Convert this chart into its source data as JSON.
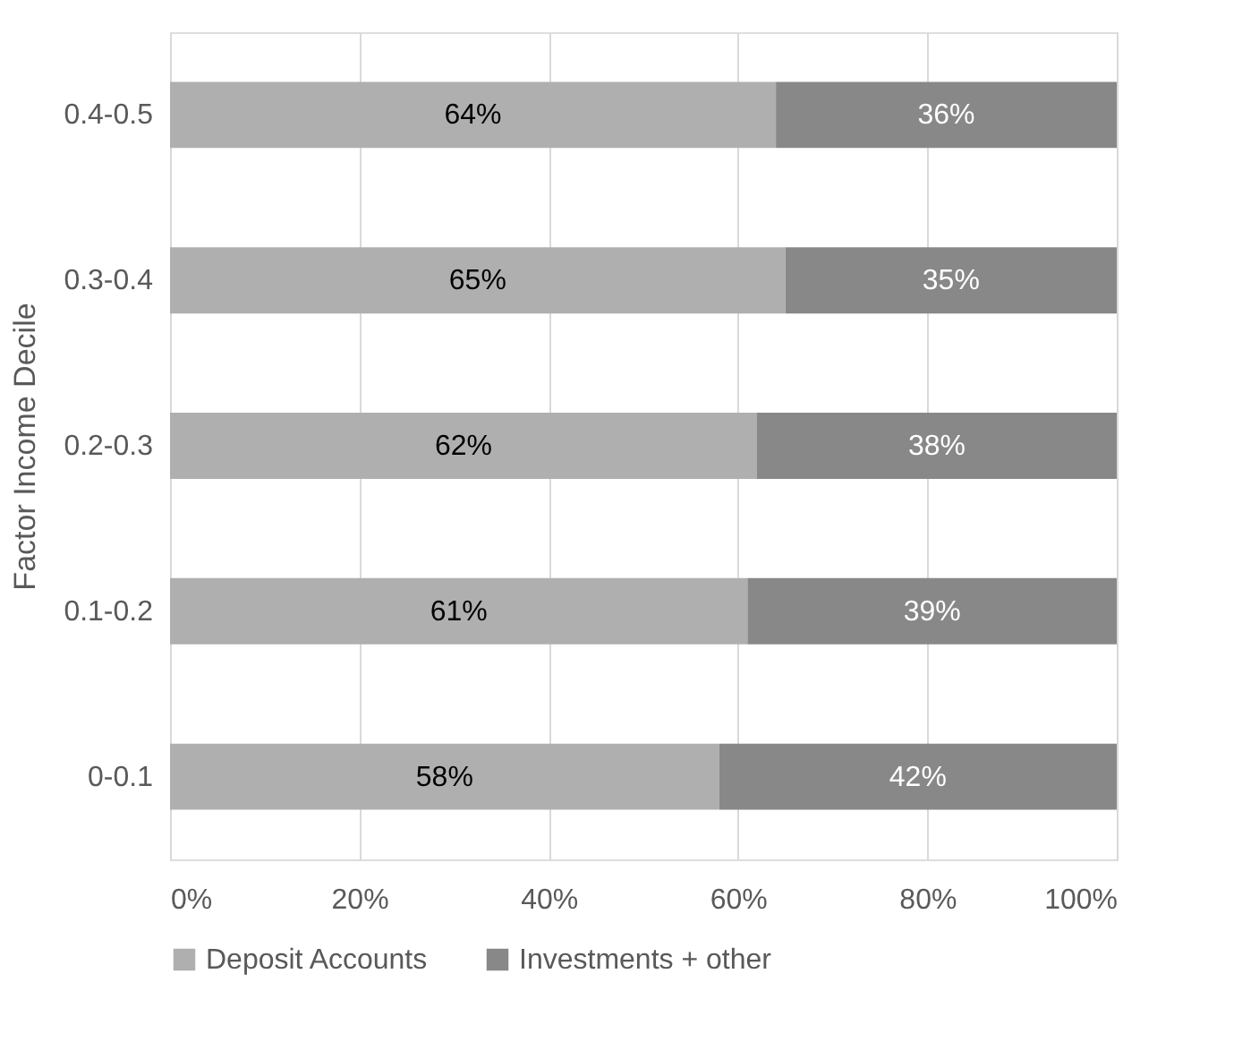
{
  "chart_data": {
    "type": "bar",
    "orientation": "horizontal",
    "stacked": true,
    "ylabel": "Factor Income Decile",
    "categories": [
      "0.4-0.5",
      "0.3-0.4",
      "0.2-0.3",
      "0.1-0.2",
      "0-0.1"
    ],
    "series": [
      {
        "name": "Deposit Accounts",
        "color": "#afafaf",
        "values": [
          64,
          65,
          62,
          61,
          58
        ],
        "value_labels": [
          "64%",
          "65%",
          "62%",
          "61%",
          "58%"
        ]
      },
      {
        "name": "Investments + other",
        "color": "#888888",
        "values": [
          36,
          35,
          38,
          39,
          42
        ],
        "value_labels": [
          "36%",
          "35%",
          "38%",
          "39%",
          "42%"
        ]
      }
    ],
    "xlim": [
      0,
      100
    ],
    "xticks": [
      {
        "value": 0,
        "label": "0%"
      },
      {
        "value": 20,
        "label": "20%"
      },
      {
        "value": 40,
        "label": "40%"
      },
      {
        "value": 60,
        "label": "60%"
      },
      {
        "value": 80,
        "label": "80%"
      },
      {
        "value": 100,
        "label": "100%"
      }
    ],
    "grid": "x",
    "legend": "bottom"
  }
}
